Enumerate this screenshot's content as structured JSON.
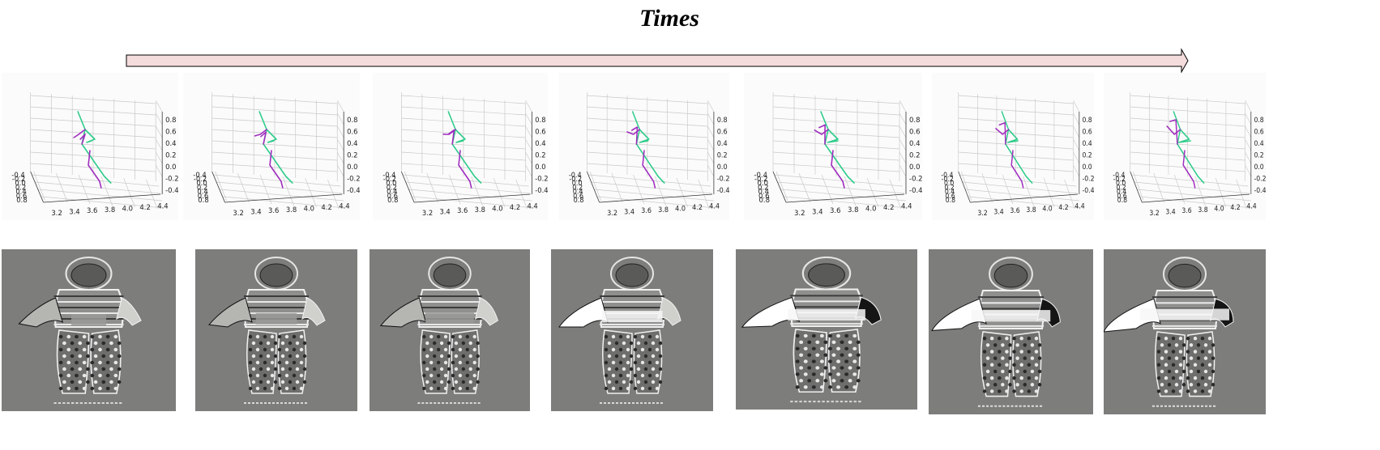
{
  "title": "Times",
  "colors": {
    "arrow_fill": "#f4dcdc",
    "left_limb": "#a02dbf",
    "right_limb": "#2ecc8a",
    "grid": "#c9c9c9",
    "frame_bg": "#7d7e7b"
  },
  "axis_ticks": {
    "x": [
      "3.2",
      "3.4",
      "3.6",
      "3.8",
      "4.0",
      "4.2",
      "4.4"
    ],
    "y": [
      "-0.4",
      "-0.2",
      "0.0",
      "0.2",
      "0.4",
      "0.6",
      "0.8"
    ],
    "z": [
      "0.8",
      "0.6",
      "0.4",
      "0.2",
      "0.0",
      "-0.2",
      "-0.4"
    ]
  },
  "frames": [
    {
      "id": 1,
      "arm_pose": 0.0
    },
    {
      "id": 2,
      "arm_pose": 0.15
    },
    {
      "id": 3,
      "arm_pose": 0.3
    },
    {
      "id": 4,
      "arm_pose": 0.5
    },
    {
      "id": 5,
      "arm_pose": 0.65
    },
    {
      "id": 6,
      "arm_pose": 0.8
    },
    {
      "id": 7,
      "arm_pose": 1.0
    }
  ]
}
